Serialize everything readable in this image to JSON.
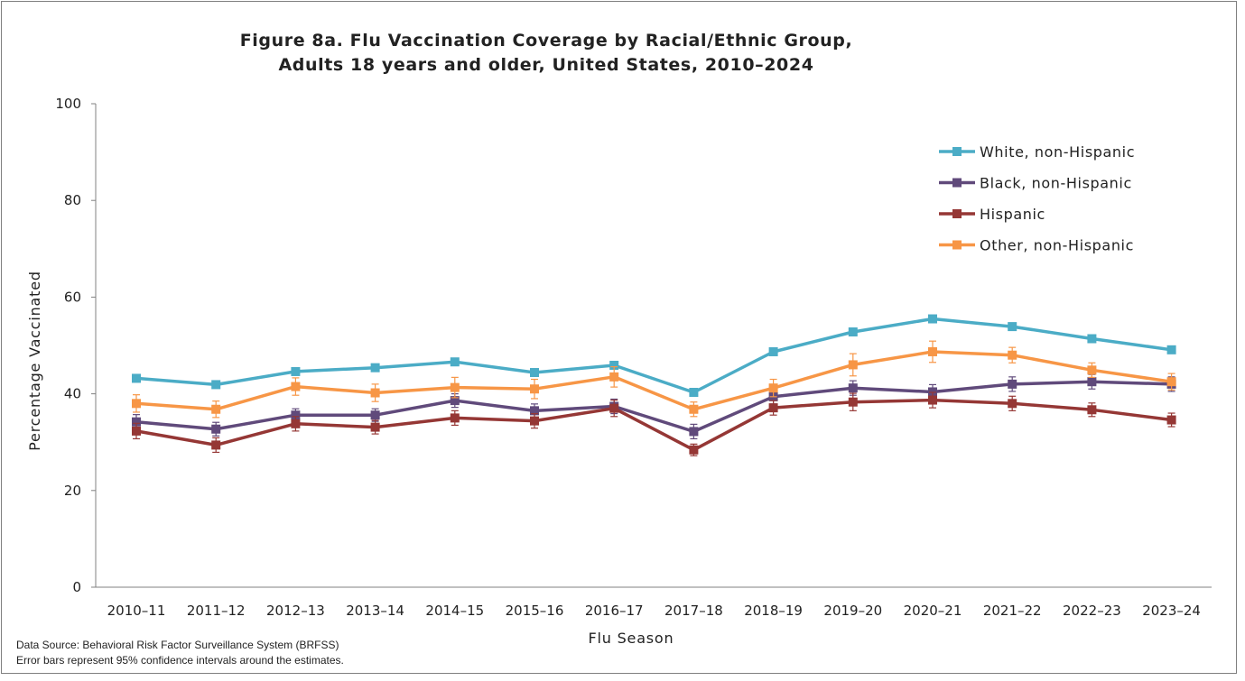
{
  "chart_data": {
    "type": "line",
    "title": [
      "Figure 8a. Flu Vaccination Coverage by Racial/Ethnic Group,",
      "Adults 18 years and older, United States, 2010–2024"
    ],
    "xlabel": "Flu Season",
    "ylabel": "Percentage Vaccinated",
    "ylim": [
      0,
      100
    ],
    "yticks": [
      "0",
      "20",
      "40",
      "60",
      "80",
      "100"
    ],
    "categories": [
      "2010–11",
      "2011–12",
      "2012–13",
      "2013–14",
      "2014–15",
      "2015–16",
      "2016–17",
      "2017–18",
      "2018–19",
      "2019–20",
      "2020–21",
      "2021–22",
      "2022–23",
      "2023–24"
    ],
    "legend_position": "top-right",
    "grid": false,
    "series": [
      {
        "name": "White, non-Hispanic",
        "color": "#4BACC6",
        "values": [
          43.2,
          41.9,
          44.6,
          45.4,
          46.6,
          44.4,
          45.9,
          40.3,
          48.7,
          52.8,
          55.5,
          53.9,
          51.4,
          49.1
        ],
        "err": [
          0.4,
          0.4,
          0.4,
          0.4,
          0.4,
          0.4,
          0.4,
          0.4,
          0.4,
          0.4,
          0.4,
          0.4,
          0.4,
          0.4
        ]
      },
      {
        "name": "Black, non-Hispanic",
        "color": "#604A7B",
        "values": [
          34.2,
          32.7,
          35.6,
          35.6,
          38.6,
          36.5,
          37.4,
          32.2,
          39.4,
          41.2,
          40.4,
          42.0,
          42.5,
          42.0
        ],
        "err": [
          1.5,
          1.4,
          1.3,
          1.3,
          1.4,
          1.4,
          1.5,
          1.5,
          1.5,
          1.5,
          1.5,
          1.5,
          1.5,
          1.5
        ]
      },
      {
        "name": "Hispanic",
        "color": "#953735",
        "values": [
          32.3,
          29.4,
          33.8,
          33.1,
          35.0,
          34.4,
          37.0,
          28.4,
          37.1,
          38.3,
          38.7,
          38.0,
          36.7,
          34.6
        ],
        "err": [
          1.6,
          1.5,
          1.5,
          1.4,
          1.5,
          1.5,
          1.7,
          1.2,
          1.5,
          1.8,
          1.6,
          1.5,
          1.4,
          1.4
        ]
      },
      {
        "name": "Other, non-Hispanic",
        "color": "#F79646",
        "values": [
          38.0,
          36.8,
          41.5,
          40.2,
          41.3,
          41.0,
          43.5,
          36.8,
          41.2,
          46.0,
          48.7,
          48.0,
          44.9,
          42.5
        ],
        "err": [
          1.8,
          1.7,
          1.8,
          1.8,
          2.1,
          2.0,
          2.1,
          1.5,
          1.8,
          2.3,
          2.2,
          1.6,
          1.5,
          1.7
        ]
      }
    ]
  },
  "footnotes": {
    "source": "Data Source: Behavioral Risk Factor Surveillance System (BRFSS)",
    "error_bars": "Error bars represent 95% confidence intervals around the estimates."
  }
}
